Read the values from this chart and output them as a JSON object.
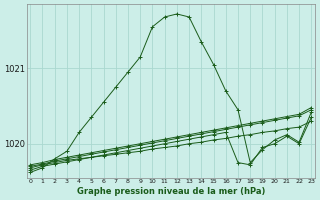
{
  "title": "Graphe pression niveau de la mer (hPa)",
  "background_color": "#cceee8",
  "grid_color": "#aad8d0",
  "line_color": "#1a5c1a",
  "x_ticks": [
    0,
    1,
    2,
    3,
    4,
    5,
    6,
    7,
    8,
    9,
    10,
    11,
    12,
    13,
    14,
    15,
    16,
    17,
    18,
    19,
    20,
    21,
    22,
    23
  ],
  "y_ticks": [
    1020,
    1021
  ],
  "ylim": [
    1019.55,
    1021.85
  ],
  "xlim": [
    -0.3,
    23.3
  ],
  "series": [
    [
      1019.68,
      1019.72,
      1019.75,
      1019.78,
      1019.8,
      1019.82,
      1019.84,
      1019.86,
      1019.88,
      1019.9,
      1019.93,
      1019.95,
      1019.97,
      1020.0,
      1020.02,
      1020.05,
      1020.07,
      1020.1,
      1020.12,
      1020.15,
      1020.17,
      1020.2,
      1020.22,
      1020.3
    ],
    [
      1019.7,
      1019.73,
      1019.77,
      1019.8,
      1019.83,
      1019.86,
      1019.89,
      1019.92,
      1019.95,
      1019.98,
      1020.01,
      1020.04,
      1020.07,
      1020.1,
      1020.13,
      1020.16,
      1020.19,
      1020.22,
      1020.25,
      1020.28,
      1020.31,
      1020.34,
      1020.37,
      1020.45
    ],
    [
      1019.72,
      1019.75,
      1019.79,
      1019.82,
      1019.85,
      1019.88,
      1019.91,
      1019.94,
      1019.97,
      1020.0,
      1020.03,
      1020.06,
      1020.09,
      1020.12,
      1020.15,
      1020.18,
      1020.21,
      1020.24,
      1020.27,
      1020.3,
      1020.33,
      1020.36,
      1020.39,
      1020.48
    ],
    [
      1019.65,
      1019.7,
      1019.73,
      1019.76,
      1019.79,
      1019.82,
      1019.85,
      1019.88,
      1019.91,
      1019.94,
      1019.97,
      1020.0,
      1020.03,
      1020.06,
      1020.09,
      1020.12,
      1020.15,
      1019.75,
      1019.72,
      1019.95,
      1020.0,
      1020.1,
      1020.0,
      1020.35
    ],
    [
      1019.62,
      1019.68,
      1019.8,
      1019.9,
      1020.15,
      1020.35,
      1020.55,
      1020.75,
      1020.95,
      1021.15,
      1021.55,
      1021.68,
      1021.72,
      1021.68,
      1021.35,
      1021.05,
      1020.7,
      1020.45,
      1019.75,
      1019.92,
      1020.05,
      1020.12,
      1020.02,
      1020.42
    ]
  ]
}
